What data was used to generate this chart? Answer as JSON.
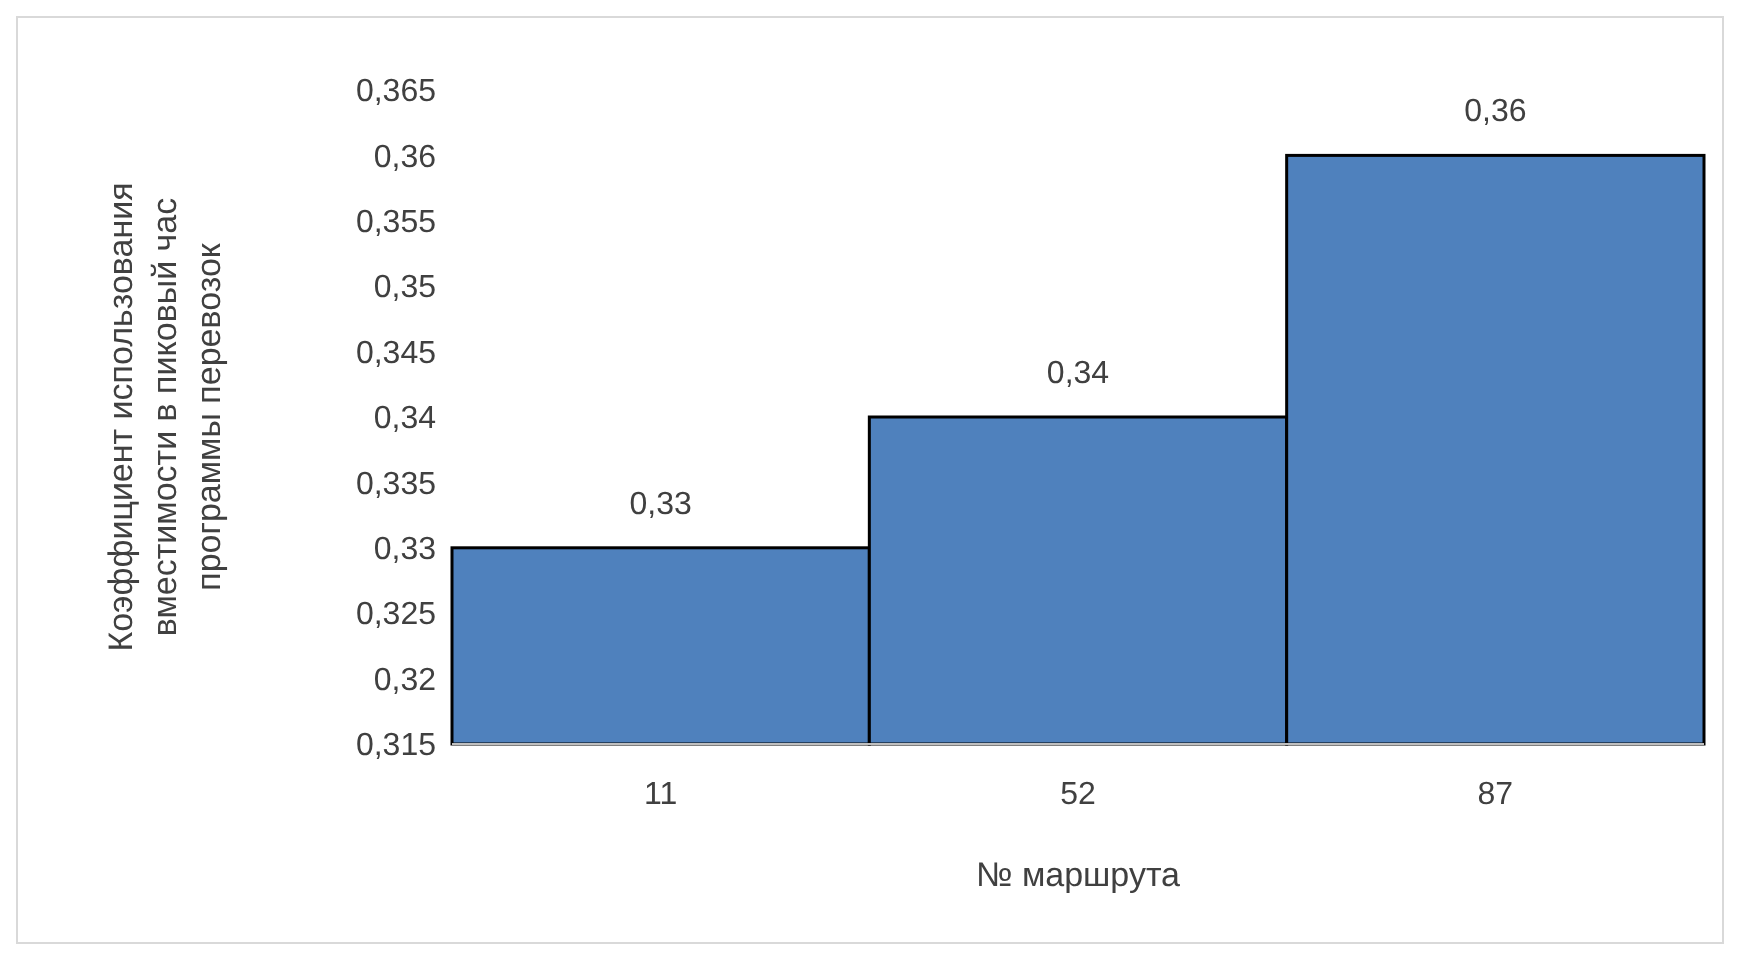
{
  "chart_data": {
    "type": "bar",
    "xlabel": "№ маршрута",
    "ylabel": "Коэффициент использования вместимости в пиковый час программы перевозок",
    "categories": [
      "11",
      "52",
      "87"
    ],
    "values": [
      0.33,
      0.34,
      0.36
    ],
    "color": "#4f81bd",
    "value_labels": [
      "0,33",
      "0,34",
      "0,36"
    ],
    "ylim": [
      0.315,
      0.365
    ],
    "yticks": [
      {
        "value": 0.315,
        "label": "0,315"
      },
      {
        "value": 0.32,
        "label": "0,32"
      },
      {
        "value": 0.325,
        "label": "0,325"
      },
      {
        "value": 0.33,
        "label": "0,33"
      },
      {
        "value": 0.335,
        "label": "0,335"
      },
      {
        "value": 0.34,
        "label": "0,34"
      },
      {
        "value": 0.345,
        "label": "0,345"
      },
      {
        "value": 0.35,
        "label": "0,35"
      },
      {
        "value": 0.355,
        "label": "0,355"
      },
      {
        "value": 0.36,
        "label": "0,36"
      },
      {
        "value": 0.365,
        "label": "0,365"
      }
    ],
    "grid": false
  }
}
